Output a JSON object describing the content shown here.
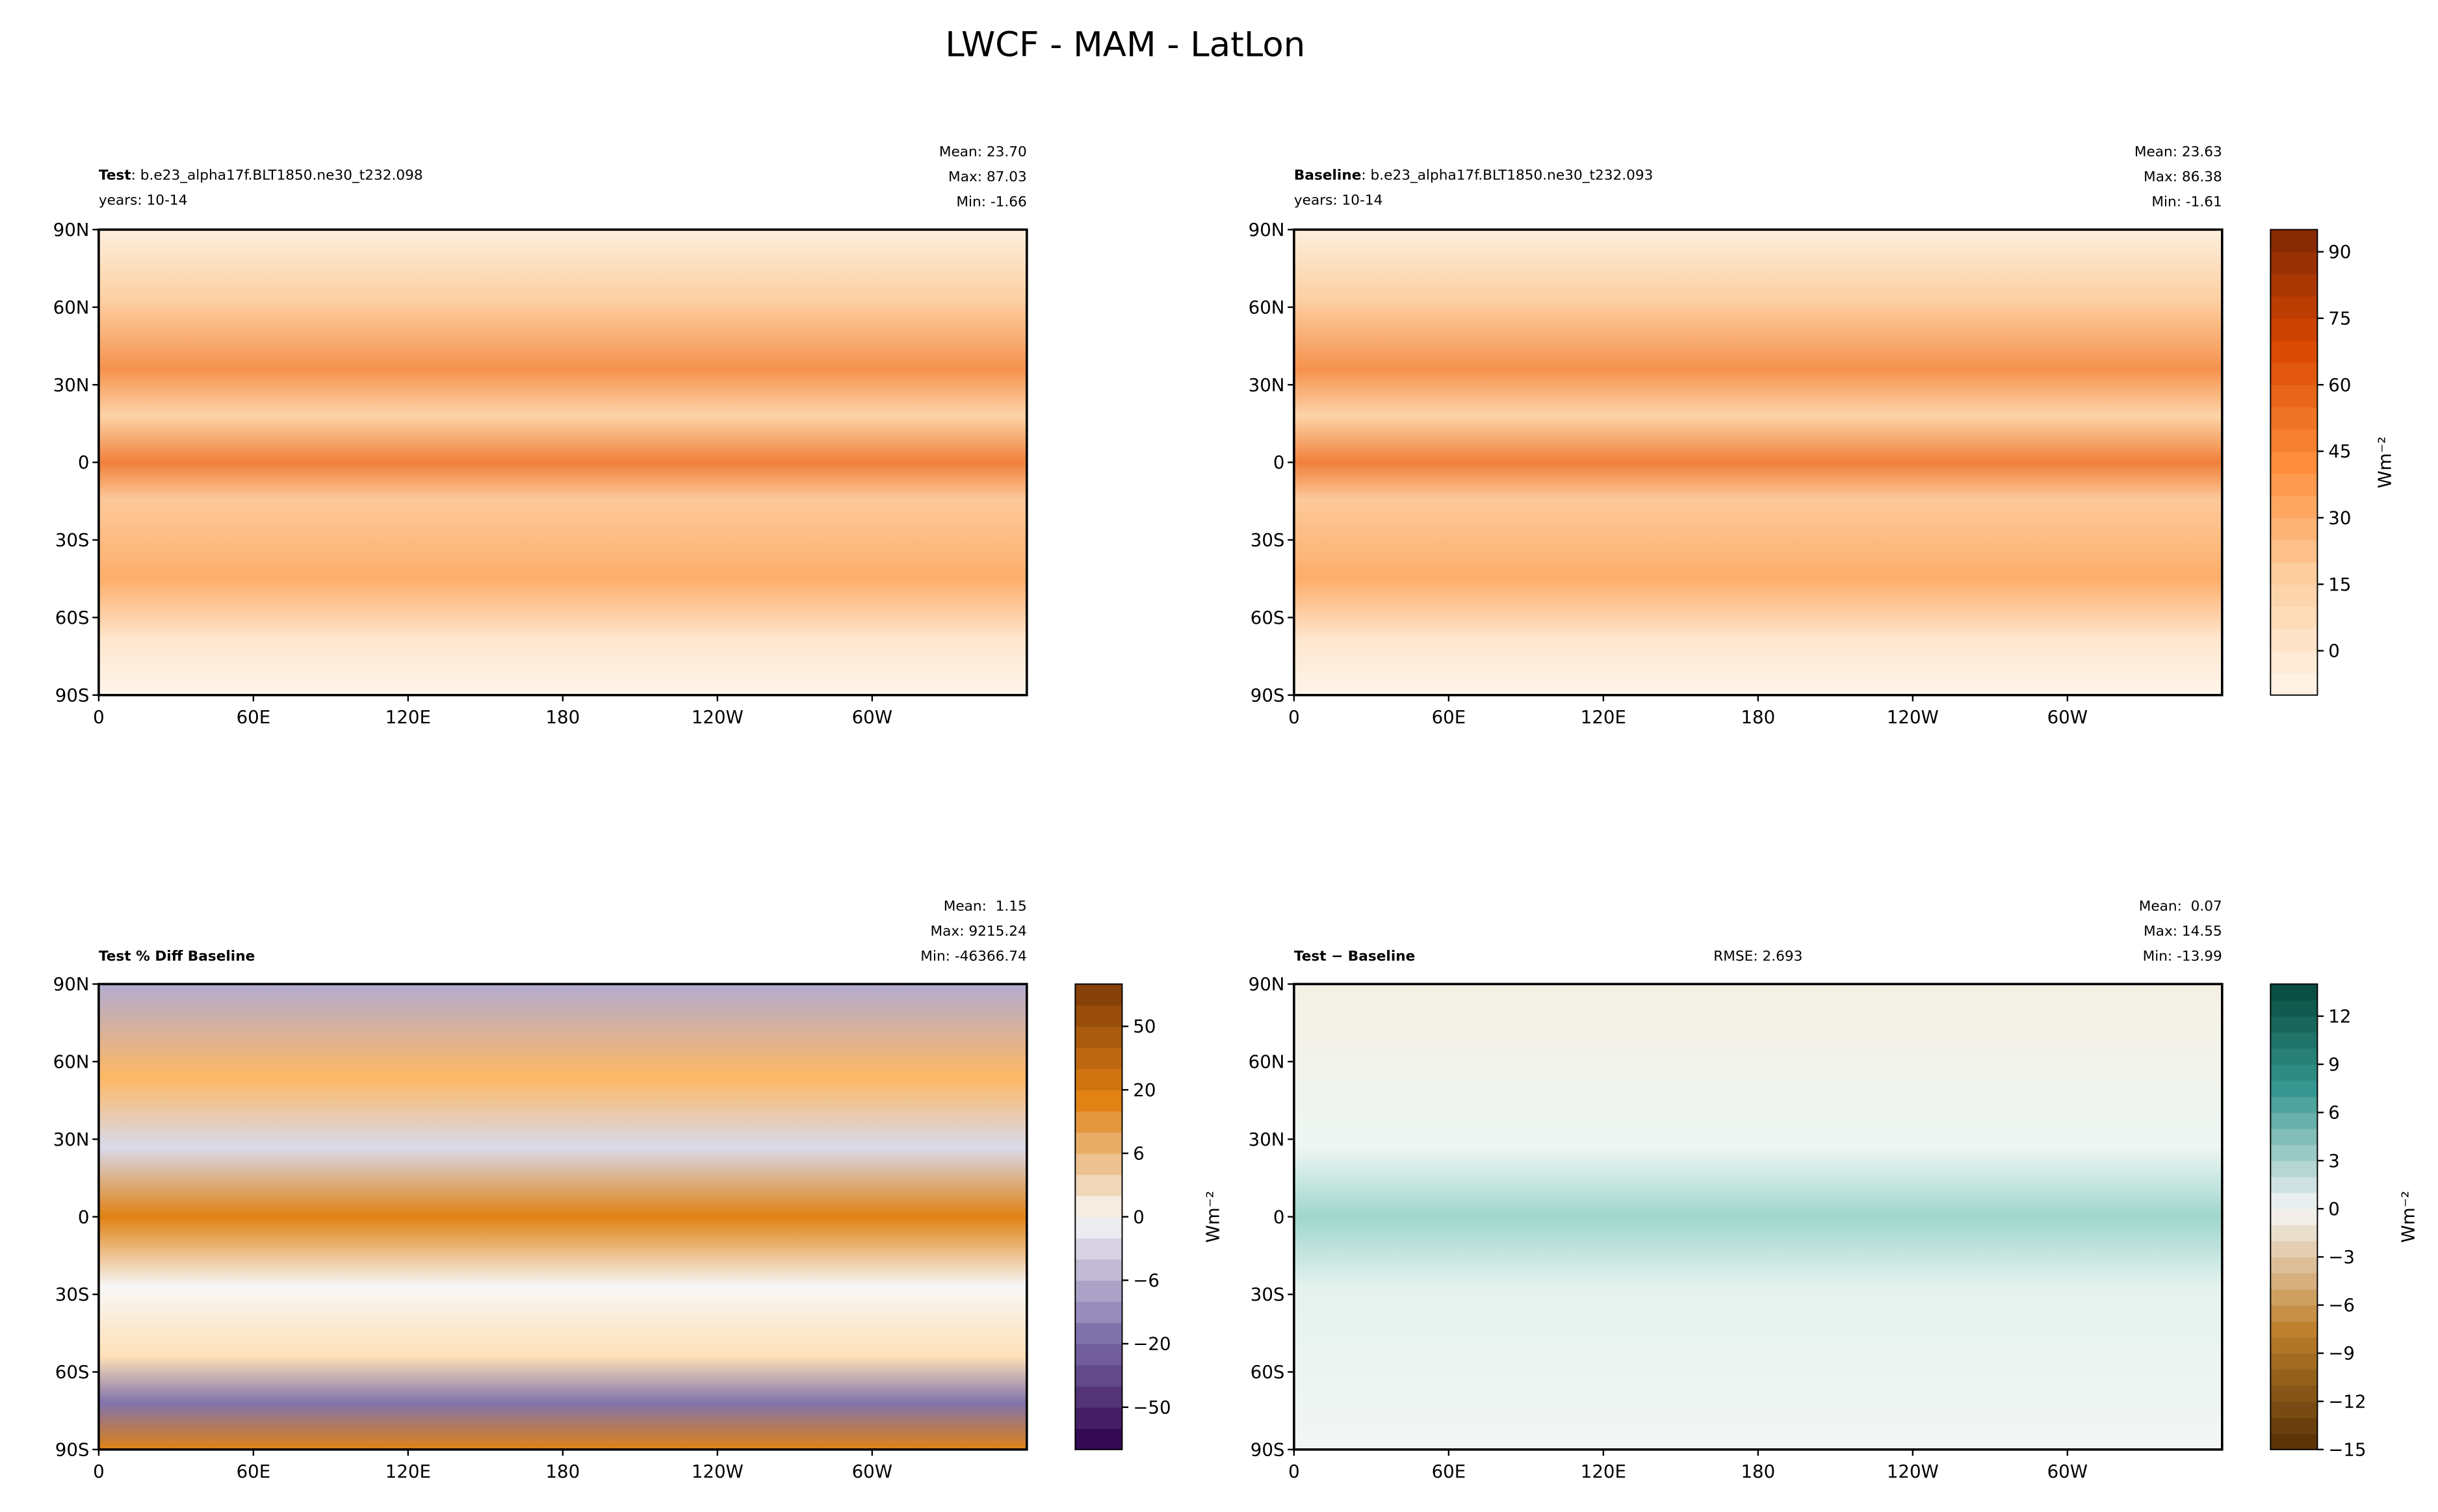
{
  "title": "LWCF - MAM - LatLon",
  "chart_data": [
    {
      "type": "map",
      "title_bold": "Test",
      "title": ": b.e23_alpha17f.BLT1850.ne30_t232.098",
      "subtitle": "years: 10-14",
      "stats": [
        "Mean: 23.70",
        "Max: 87.03",
        "Min: -1.66"
      ],
      "colormap": "Oranges",
      "xlim": [
        0,
        360
      ],
      "ylim": [
        -90,
        90
      ],
      "xticks": [
        0,
        {
          "value": 60,
          "label": "60E"
        },
        {
          "value": 120,
          "label": "120E"
        },
        180,
        {
          "value": 240,
          "label": "120W"
        },
        {
          "value": 300,
          "label": "60W"
        }
      ],
      "yticks": [
        {
          "value": -90,
          "label": "90S"
        },
        {
          "value": -60,
          "label": "60S"
        },
        {
          "value": -30,
          "label": "30S"
        },
        0,
        {
          "value": 30,
          "label": "30N"
        },
        {
          "value": 60,
          "label": "60N"
        },
        {
          "value": 90,
          "label": "90N"
        }
      ]
    },
    {
      "type": "map",
      "title_bold": "Baseline",
      "title": ": b.e23_alpha17f.BLT1850.ne30_t232.093",
      "subtitle": "years: 10-14",
      "stats": [
        "Mean: 23.63",
        "Max: 86.38",
        "Min: -1.61"
      ],
      "colormap": "Oranges",
      "xlim": [
        0,
        360
      ],
      "ylim": [
        -90,
        90
      ],
      "xticks": [
        0,
        {
          "value": 60,
          "label": "60E"
        },
        {
          "value": 120,
          "label": "120E"
        },
        180,
        {
          "value": 240,
          "label": "120W"
        },
        {
          "value": 300,
          "label": "60W"
        }
      ],
      "yticks": [
        {
          "value": -90,
          "label": "90S"
        },
        {
          "value": -60,
          "label": "60S"
        },
        {
          "value": -30,
          "label": "30S"
        },
        0,
        {
          "value": 30,
          "label": "30N"
        },
        {
          "value": 60,
          "label": "60N"
        },
        {
          "value": 90,
          "label": "90N"
        }
      ],
      "colorbar": {
        "levels": [
          -10,
          -5,
          0,
          5,
          10,
          15,
          20,
          25,
          30,
          35,
          40,
          45,
          50,
          55,
          60,
          65,
          70,
          75,
          80,
          85,
          90,
          95
        ],
        "ticks": [
          0,
          15,
          30,
          45,
          60,
          75,
          90
        ],
        "label": "Wm⁻²",
        "spacing": "proportional"
      }
    },
    {
      "type": "map",
      "title_bold": "Test % Diff Baseline",
      "stats": [
        "Mean:  1.15",
        "Max: 9215.24",
        "Min: -46366.74"
      ],
      "colormap": "PuOr",
      "xlim": [
        0,
        360
      ],
      "ylim": [
        -90,
        90
      ],
      "xticks": [
        0,
        {
          "value": 60,
          "label": "60E"
        },
        {
          "value": 120,
          "label": "120E"
        },
        180,
        {
          "value": 240,
          "label": "120W"
        },
        {
          "value": 300,
          "label": "60W"
        }
      ],
      "yticks": [
        {
          "value": -90,
          "label": "90S"
        },
        {
          "value": -60,
          "label": "60S"
        },
        {
          "value": -30,
          "label": "30S"
        },
        0,
        {
          "value": 30,
          "label": "30N"
        },
        {
          "value": 60,
          "label": "60N"
        },
        {
          "value": 90,
          "label": "90N"
        }
      ],
      "colorbar": {
        "levels": [
          -100,
          -75,
          -50,
          -40,
          -30,
          -20,
          -15,
          -10,
          -6,
          -4,
          -2,
          0,
          2,
          4,
          6,
          10,
          15,
          20,
          30,
          40,
          50,
          75,
          100
        ],
        "ticks": [
          {
            "value": -50,
            "label": "−50"
          },
          {
            "value": -20,
            "label": "−20"
          },
          {
            "value": -6,
            "label": "−6"
          },
          0,
          6,
          20,
          50
        ],
        "label": "Wm⁻²",
        "spacing": "uniform"
      }
    },
    {
      "type": "map",
      "title_bold": "Test − Baseline",
      "rmse": "RMSE: 2.693",
      "stats": [
        "Mean:  0.07",
        "Max: 14.55",
        "Min: -13.99"
      ],
      "colormap": "BrBG",
      "xlim": [
        0,
        360
      ],
      "ylim": [
        -90,
        90
      ],
      "xticks": [
        0,
        {
          "value": 60,
          "label": "60E"
        },
        {
          "value": 120,
          "label": "120E"
        },
        180,
        {
          "value": 240,
          "label": "120W"
        },
        {
          "value": 300,
          "label": "60W"
        }
      ],
      "yticks": [
        {
          "value": -90,
          "label": "90S"
        },
        {
          "value": -60,
          "label": "60S"
        },
        {
          "value": -30,
          "label": "30S"
        },
        0,
        {
          "value": 30,
          "label": "30N"
        },
        {
          "value": 60,
          "label": "60N"
        },
        {
          "value": 90,
          "label": "90N"
        }
      ],
      "colorbar": {
        "levels": [
          -15,
          -14,
          -13,
          -12,
          -11,
          -10,
          -9,
          -8,
          -7,
          -6,
          -5,
          -4,
          -3,
          -2,
          -1,
          0,
          1,
          2,
          3,
          4,
          5,
          6,
          7,
          8,
          9,
          10,
          11,
          12,
          13,
          14
        ],
        "ticks": [
          {
            "value": -15,
            "label": "−15"
          },
          {
            "value": -12,
            "label": "−12"
          },
          {
            "value": -9,
            "label": "−9"
          },
          {
            "value": -6,
            "label": "−6"
          },
          {
            "value": -3,
            "label": "−3"
          },
          0,
          3,
          6,
          9,
          12
        ],
        "label": "Wm⁻²",
        "spacing": "proportional"
      }
    }
  ]
}
